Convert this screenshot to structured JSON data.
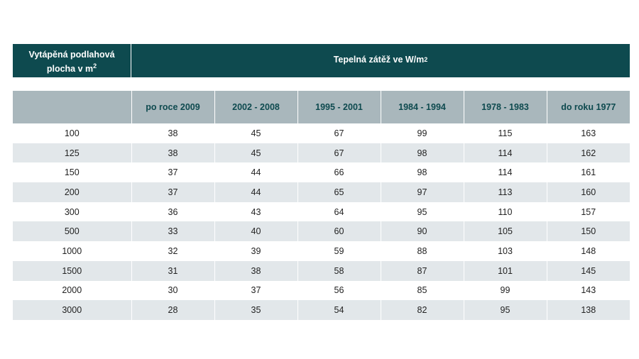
{
  "header": {
    "left_line1": "Vytápěná podlahová",
    "left_line2": "plocha v  m",
    "left_sup": "2",
    "right_text": "Tepelná zátěž ve  W/m",
    "right_sup": "2"
  },
  "table": {
    "columns": [
      "",
      "po roce 2009",
      "2002 - 2008",
      "1995 - 2001",
      "1984 - 1994",
      "1978 - 1983",
      "do roku 1977"
    ],
    "rows": [
      [
        "100",
        "38",
        "45",
        "67",
        "99",
        "115",
        "163"
      ],
      [
        "125",
        "38",
        "45",
        "67",
        "98",
        "114",
        "162"
      ],
      [
        "150",
        "37",
        "44",
        "66",
        "98",
        "114",
        "161"
      ],
      [
        "200",
        "37",
        "44",
        "65",
        "97",
        "113",
        "160"
      ],
      [
        "300",
        "36",
        "43",
        "64",
        "95",
        "110",
        "157"
      ],
      [
        "500",
        "33",
        "40",
        "60",
        "90",
        "105",
        "150"
      ],
      [
        "1000",
        "32",
        "39",
        "59",
        "88",
        "103",
        "148"
      ],
      [
        "1500",
        "31",
        "38",
        "58",
        "87",
        "101",
        "145"
      ],
      [
        "2000",
        "30",
        "37",
        "56",
        "85",
        "99",
        "143"
      ],
      [
        "3000",
        "28",
        "35",
        "54",
        "82",
        "95",
        "138"
      ]
    ]
  }
}
